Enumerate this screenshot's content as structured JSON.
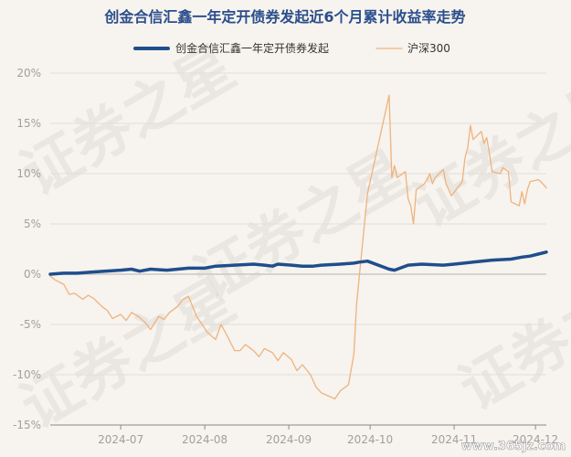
{
  "chart_data": {
    "type": "line",
    "title": "创金合信汇鑫一年定开债券发起近6个月累计收益率走势",
    "xlabel": "",
    "ylabel": "",
    "ylim": [
      -15,
      20
    ],
    "y_ticks": [
      "20%",
      "15%",
      "10%",
      "5%",
      "0%",
      "-5%",
      "-10%",
      "-15%"
    ],
    "x_range": [
      "2024-06-05",
      "2024-12-05"
    ],
    "x_ticks": [
      {
        "date": "2024-07-01",
        "label": "2024-07"
      },
      {
        "date": "2024-08-01",
        "label": "2024-08"
      },
      {
        "date": "2024-09-01",
        "label": "2024-09"
      },
      {
        "date": "2024-10-01",
        "label": "2024-10"
      },
      {
        "date": "2024-11-01",
        "label": "2024-11"
      },
      {
        "date": "2024-12-01",
        "label": "2024-12"
      }
    ],
    "grid": true,
    "legend_position": "top-center",
    "series": [
      {
        "name": "创金合信汇鑫一年定开债券发起",
        "color": "#1f4e8c",
        "points": [
          [
            "2024-06-05",
            0.0
          ],
          [
            "2024-06-10",
            0.1
          ],
          [
            "2024-06-15",
            0.1
          ],
          [
            "2024-06-20",
            0.2
          ],
          [
            "2024-06-25",
            0.3
          ],
          [
            "2024-07-01",
            0.4
          ],
          [
            "2024-07-05",
            0.5
          ],
          [
            "2024-07-08",
            0.3
          ],
          [
            "2024-07-12",
            0.5
          ],
          [
            "2024-07-18",
            0.4
          ],
          [
            "2024-07-22",
            0.5
          ],
          [
            "2024-07-26",
            0.6
          ],
          [
            "2024-08-01",
            0.6
          ],
          [
            "2024-08-05",
            0.8
          ],
          [
            "2024-08-12",
            0.9
          ],
          [
            "2024-08-19",
            1.0
          ],
          [
            "2024-08-23",
            0.9
          ],
          [
            "2024-08-26",
            0.8
          ],
          [
            "2024-08-28",
            1.0
          ],
          [
            "2024-09-02",
            0.9
          ],
          [
            "2024-09-06",
            0.8
          ],
          [
            "2024-09-10",
            0.8
          ],
          [
            "2024-09-13",
            0.9
          ],
          [
            "2024-09-20",
            1.0
          ],
          [
            "2024-09-25",
            1.1
          ],
          [
            "2024-09-27",
            1.2
          ],
          [
            "2024-09-30",
            1.3
          ],
          [
            "2024-10-08",
            0.5
          ],
          [
            "2024-10-10",
            0.4
          ],
          [
            "2024-10-15",
            0.9
          ],
          [
            "2024-10-20",
            1.0
          ],
          [
            "2024-10-28",
            0.9
          ],
          [
            "2024-11-01",
            1.0
          ],
          [
            "2024-11-08",
            1.2
          ],
          [
            "2024-11-15",
            1.4
          ],
          [
            "2024-11-22",
            1.5
          ],
          [
            "2024-11-26",
            1.7
          ],
          [
            "2024-11-29",
            1.8
          ],
          [
            "2024-12-02",
            2.0
          ],
          [
            "2024-12-05",
            2.2
          ]
        ]
      },
      {
        "name": "沪深300",
        "color": "#eeb37d",
        "points": [
          [
            "2024-06-05",
            -0.2
          ],
          [
            "2024-06-07",
            -0.6
          ],
          [
            "2024-06-10",
            -1.0
          ],
          [
            "2024-06-12",
            -2.0
          ],
          [
            "2024-06-14",
            -1.9
          ],
          [
            "2024-06-17",
            -2.5
          ],
          [
            "2024-06-19",
            -2.1
          ],
          [
            "2024-06-21",
            -2.4
          ],
          [
            "2024-06-24",
            -3.2
          ],
          [
            "2024-06-26",
            -3.6
          ],
          [
            "2024-06-28",
            -4.4
          ],
          [
            "2024-07-01",
            -4.0
          ],
          [
            "2024-07-03",
            -4.6
          ],
          [
            "2024-07-05",
            -3.8
          ],
          [
            "2024-07-08",
            -4.3
          ],
          [
            "2024-07-10",
            -4.8
          ],
          [
            "2024-07-12",
            -5.5
          ],
          [
            "2024-07-15",
            -4.2
          ],
          [
            "2024-07-17",
            -4.5
          ],
          [
            "2024-07-19",
            -3.8
          ],
          [
            "2024-07-22",
            -3.2
          ],
          [
            "2024-07-24",
            -2.5
          ],
          [
            "2024-07-26",
            -2.2
          ],
          [
            "2024-07-29",
            -4.2
          ],
          [
            "2024-07-31",
            -5.0
          ],
          [
            "2024-08-02",
            -5.8
          ],
          [
            "2024-08-05",
            -6.5
          ],
          [
            "2024-08-07",
            -5.0
          ],
          [
            "2024-08-09",
            -6.0
          ],
          [
            "2024-08-12",
            -7.6
          ],
          [
            "2024-08-14",
            -7.6
          ],
          [
            "2024-08-16",
            -7.0
          ],
          [
            "2024-08-19",
            -7.6
          ],
          [
            "2024-08-21",
            -8.2
          ],
          [
            "2024-08-23",
            -7.4
          ],
          [
            "2024-08-26",
            -7.8
          ],
          [
            "2024-08-28",
            -8.6
          ],
          [
            "2024-08-30",
            -7.8
          ],
          [
            "2024-09-02",
            -8.5
          ],
          [
            "2024-09-04",
            -9.6
          ],
          [
            "2024-09-06",
            -9.0
          ],
          [
            "2024-09-09",
            -10.0
          ],
          [
            "2024-09-11",
            -11.2
          ],
          [
            "2024-09-13",
            -11.8
          ],
          [
            "2024-09-18",
            -12.4
          ],
          [
            "2024-09-20",
            -11.6
          ],
          [
            "2024-09-23",
            -11.0
          ],
          [
            "2024-09-25",
            -8.0
          ],
          [
            "2024-09-26",
            -3.0
          ],
          [
            "2024-09-27",
            -0.2
          ],
          [
            "2024-09-30",
            8.0
          ],
          [
            "2024-10-08",
            17.8
          ],
          [
            "2024-10-09",
            9.6
          ],
          [
            "2024-10-10",
            10.8
          ],
          [
            "2024-10-11",
            9.6
          ],
          [
            "2024-10-14",
            10.2
          ],
          [
            "2024-10-15",
            7.5
          ],
          [
            "2024-10-16",
            6.8
          ],
          [
            "2024-10-17",
            5.0
          ],
          [
            "2024-10-18",
            8.4
          ],
          [
            "2024-10-21",
            9.0
          ],
          [
            "2024-10-22",
            9.4
          ],
          [
            "2024-10-23",
            10.0
          ],
          [
            "2024-10-24",
            9.0
          ],
          [
            "2024-10-25",
            9.6
          ],
          [
            "2024-10-28",
            10.4
          ],
          [
            "2024-10-29",
            9.0
          ],
          [
            "2024-10-30",
            8.4
          ],
          [
            "2024-10-31",
            7.8
          ],
          [
            "2024-11-04",
            9.2
          ],
          [
            "2024-11-05",
            11.6
          ],
          [
            "2024-11-06",
            12.6
          ],
          [
            "2024-11-07",
            14.8
          ],
          [
            "2024-11-08",
            13.4
          ],
          [
            "2024-11-11",
            14.2
          ],
          [
            "2024-11-12",
            13.0
          ],
          [
            "2024-11-13",
            13.6
          ],
          [
            "2024-11-14",
            12.0
          ],
          [
            "2024-11-15",
            10.2
          ],
          [
            "2024-11-18",
            10.0
          ],
          [
            "2024-11-19",
            10.6
          ],
          [
            "2024-11-20",
            10.4
          ],
          [
            "2024-11-21",
            10.2
          ],
          [
            "2024-11-22",
            7.2
          ],
          [
            "2024-11-25",
            6.8
          ],
          [
            "2024-11-26",
            8.2
          ],
          [
            "2024-11-27",
            7.0
          ],
          [
            "2024-11-28",
            8.4
          ],
          [
            "2024-11-29",
            9.2
          ],
          [
            "2024-12-02",
            9.4
          ],
          [
            "2024-12-03",
            9.2
          ],
          [
            "2024-12-04",
            8.9
          ],
          [
            "2024-12-05",
            8.6
          ]
        ]
      }
    ]
  },
  "watermark": {
    "text": "证券之星",
    "site": "www.365jz.com"
  }
}
